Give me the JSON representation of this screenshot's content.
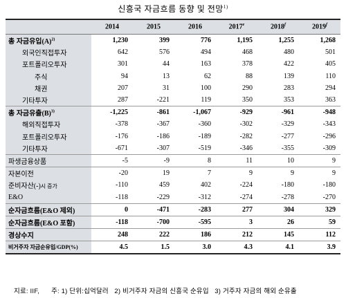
{
  "title": "신흥국 자금흐름 동향 및 전망",
  "title_note": "1)",
  "years": [
    "2014",
    "2015",
    "2016",
    "2017",
    "2018",
    "2019"
  ],
  "year_notes": [
    "",
    "",
    "",
    "e",
    "f",
    "f"
  ],
  "rows": [
    {
      "label": "총 자금유입(A)",
      "note": "2)",
      "values": [
        "1,230",
        "399",
        "776",
        "1,195",
        "1,255",
        "1,268"
      ]
    },
    {
      "label": "외국인직접투자",
      "values": [
        "642",
        "576",
        "494",
        "468",
        "480",
        "501"
      ]
    },
    {
      "label": "포트폴리오투자",
      "values": [
        "301",
        "44",
        "163",
        "378",
        "422",
        "405"
      ]
    },
    {
      "label": "주식",
      "values": [
        "94",
        "13",
        "62",
        "88",
        "139",
        "110"
      ]
    },
    {
      "label": "채권",
      "values": [
        "207",
        "31",
        "100",
        "290",
        "283",
        "294"
      ]
    },
    {
      "label": "기타투자",
      "values": [
        "287",
        "-221",
        "119",
        "350",
        "353",
        "363"
      ]
    },
    {
      "label": "총 자금유출(B)",
      "note": "3)",
      "values": [
        "-1,225",
        "-861",
        "-1,067",
        "-929",
        "-961",
        "-948"
      ]
    },
    {
      "label": "해외직접투자",
      "values": [
        "-378",
        "-367",
        "-360",
        "-302",
        "-329",
        "-343"
      ]
    },
    {
      "label": "포트폴리오투자",
      "values": [
        "-176",
        "-186",
        "-189",
        "-282",
        "-277",
        "-296"
      ]
    },
    {
      "label": "기타투자",
      "values": [
        "-671",
        "-307",
        "-519",
        "-346",
        "-355",
        "-309"
      ]
    },
    {
      "label": "파생금융상품",
      "values": [
        "-5",
        "-9",
        "8",
        "11",
        "10",
        "9"
      ]
    },
    {
      "label": "자본이전",
      "values": [
        "-20",
        "19",
        "7",
        "9",
        "9",
        "9"
      ]
    },
    {
      "label": "준비자산(-)",
      "label_suffix": "시 증가",
      "values": [
        "-110",
        "459",
        "402",
        "-224",
        "-180",
        "-180"
      ]
    },
    {
      "label": "E&O",
      "values": [
        "-118",
        "-229",
        "-312",
        "-274",
        "-278",
        "-270"
      ]
    },
    {
      "label": "순자금흐름(E&O 제외)",
      "values": [
        "0",
        "-471",
        "-283",
        "277",
        "304",
        "329"
      ]
    },
    {
      "label": "순자금흐름(E&O 포함)",
      "values": [
        "-118",
        "-700",
        "-595",
        "3",
        "26",
        "59"
      ]
    },
    {
      "label": "경상수지",
      "values": [
        "248",
        "222",
        "186",
        "212",
        "145",
        "112"
      ]
    },
    {
      "label": "비거주자 자금순유입/GDP(%)",
      "values": [
        "4.5",
        "1.5",
        "3.0",
        "4.3",
        "4.1",
        "3.9"
      ]
    }
  ],
  "footnote": "지료: IIF,      주: 1) 단위:십억달러   2) 비거주자 자금의 신흥국 순유입   3) 거주자 자금의 해외 순유출"
}
